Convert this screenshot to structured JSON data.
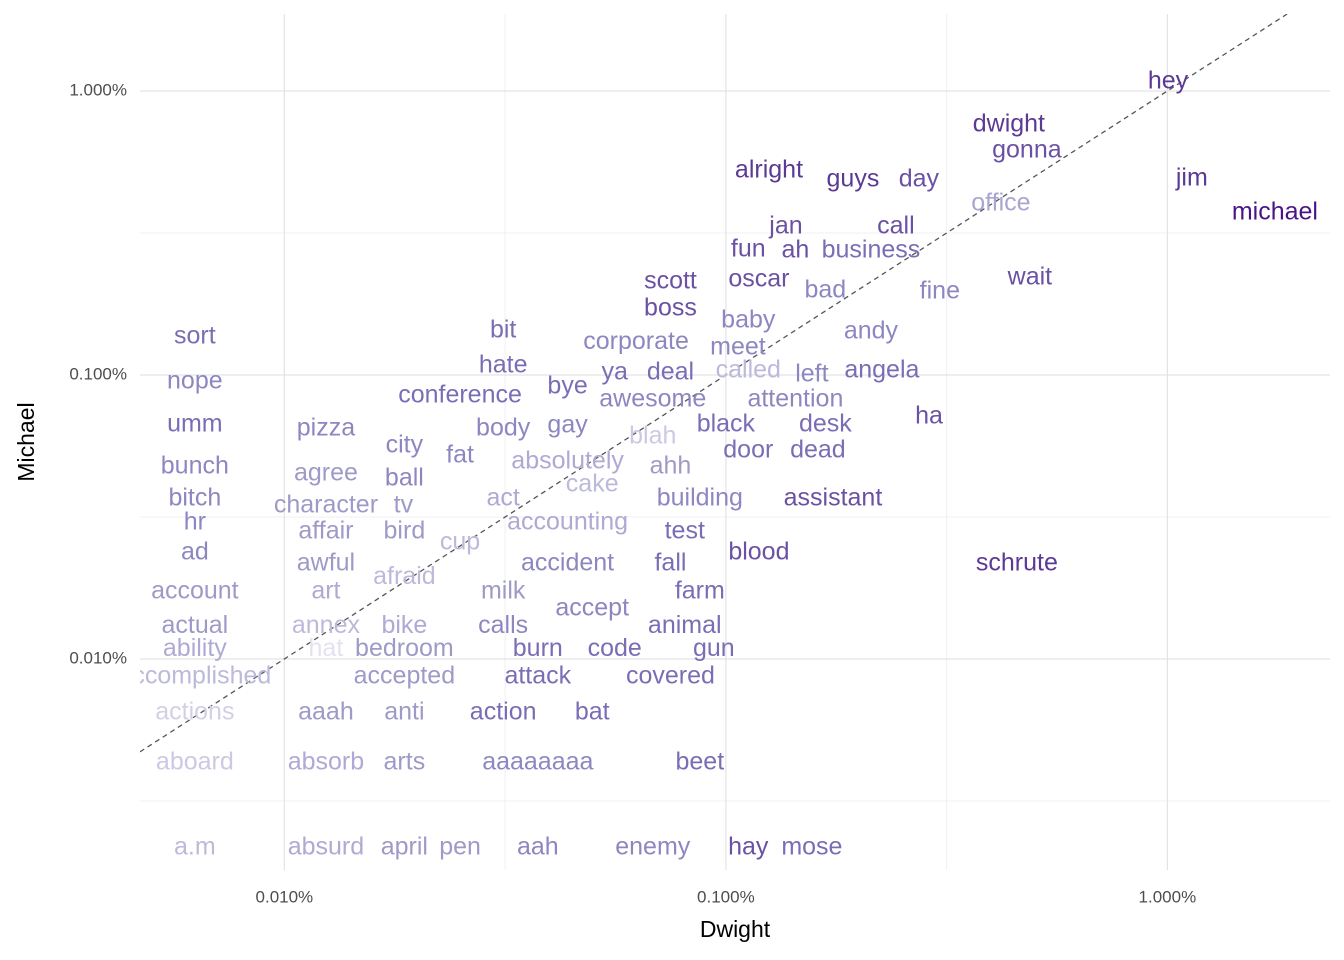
{
  "chart_data": {
    "type": "scatter",
    "xlabel": "Dwight",
    "ylabel": "Michael",
    "log_x": true,
    "log_y": true,
    "grid": true,
    "diagonal_line": true,
    "xlim": [
      0.00471,
      2.335
    ],
    "ylim": [
      0.001807,
      1.867
    ],
    "xticks": [
      {
        "value": 0.01,
        "label": "0.010%"
      },
      {
        "value": 0.1,
        "label": "0.100%"
      },
      {
        "value": 1,
        "label": "1.000%"
      }
    ],
    "yticks": [
      {
        "value": 0.01,
        "label": "0.010%"
      },
      {
        "value": 0.1,
        "label": "0.100%"
      },
      {
        "value": 1,
        "label": "1.000%"
      }
    ],
    "labels": [
      "hey",
      "dwight",
      "gonna",
      "alright",
      "guys",
      "day",
      "jim",
      "michael",
      "office",
      "jan",
      "call",
      "fun",
      "ah",
      "business",
      "scott",
      "oscar",
      "wait",
      "bad",
      "fine",
      "boss",
      "baby",
      "sort",
      "bit",
      "andy",
      "corporate",
      "meet",
      "hate",
      "ya",
      "deal",
      "called",
      "left",
      "angela",
      "nope",
      "bye",
      "conference",
      "awesome",
      "attention",
      "ha",
      "umm",
      "pizza",
      "body",
      "gay",
      "black",
      "desk",
      "blah",
      "city",
      "fat",
      "door",
      "dead",
      "bunch",
      "agree",
      "absolutely",
      "ahh",
      "ball",
      "cake",
      "bitch",
      "act",
      "building",
      "assistant",
      "character",
      "tv",
      "hr",
      "accounting",
      "affair",
      "bird",
      "test",
      "cup",
      "ad",
      "blood",
      "awful",
      "accident",
      "fall",
      "schrute",
      "afraid",
      "account",
      "art",
      "milk",
      "farm",
      "accept",
      "actual",
      "annex",
      "bike",
      "calls",
      "animal",
      "ability",
      "hat",
      "bedroom",
      "burn",
      "code",
      "gun",
      "accomplished",
      "accepted",
      "attack",
      "covered",
      "actions",
      "aaah",
      "anti",
      "action",
      "bat",
      "aboard",
      "absorb",
      "arts",
      "aaaaaaaa",
      "beet",
      "a.m",
      "absurd",
      "april",
      "pen",
      "aah",
      "enemy",
      "hay",
      "mose"
    ],
    "x": [
      1.003,
      0.4375,
      0.4806,
      0.1252,
      0.194,
      0.2736,
      1.136,
      1.752,
      0.4197,
      0.1368,
      0.2427,
      0.1124,
      0.1437,
      0.2131,
      0.0749,
      0.1188,
      0.4882,
      0.168,
      0.3052,
      0.0749,
      0.1124,
      0.00627,
      0.0313,
      0.2131,
      0.0626,
      0.1065,
      0.0313,
      0.056,
      0.0749,
      0.1124,
      0.1566,
      0.2256,
      0.00627,
      0.0438,
      0.025,
      0.0683,
      0.1437,
      0.2884,
      0.00627,
      0.01242,
      0.0313,
      0.0438,
      0.1,
      0.168,
      0.0683,
      0.0187,
      0.025,
      0.1124,
      0.1616,
      0.00627,
      0.01242,
      0.0438,
      0.0749,
      0.0187,
      0.0498,
      0.00627,
      0.0313,
      0.0873,
      0.1748,
      0.01242,
      0.0186,
      0.00627,
      0.0438,
      0.01242,
      0.0187,
      0.0807,
      0.025,
      0.00627,
      0.1188,
      0.01242,
      0.0438,
      0.0749,
      0.4561,
      0.0187,
      0.00627,
      0.01242,
      0.0313,
      0.0873,
      0.0498,
      0.00627,
      0.01242,
      0.0187,
      0.0313,
      0.0807,
      0.00627,
      0.01242,
      0.0187,
      0.0375,
      0.056,
      0.0939,
      0.00627,
      0.0187,
      0.0375,
      0.0749,
      0.00627,
      0.01242,
      0.0187,
      0.0313,
      0.0498,
      0.00627,
      0.01242,
      0.0187,
      0.0375,
      0.0873,
      0.00627,
      0.01242,
      0.0187,
      0.025,
      0.0375,
      0.0683,
      0.1124,
      0.1566
    ],
    "values": [
      1.076,
      0.759,
      0.615,
      0.523,
      0.486,
      0.486,
      0.49,
      0.372,
      0.4,
      0.332,
      0.332,
      0.276,
      0.273,
      0.273,
      0.2125,
      0.216,
      0.2195,
      0.198,
      0.196,
      0.171,
      0.155,
      0.136,
      0.143,
      0.142,
      0.13,
      0.1245,
      0.1076,
      0.1016,
      0.1016,
      0.1033,
      0.1,
      0.1033,
      0.0945,
      0.0907,
      0.0843,
      0.0817,
      0.0817,
      0.0711,
      0.0667,
      0.0646,
      0.0646,
      0.0661,
      0.0667,
      0.0667,
      0.0605,
      0.0562,
      0.0519,
      0.054,
      0.054,
      0.0474,
      0.0448,
      0.0494,
      0.0474,
      0.043,
      0.041,
      0.0366,
      0.0366,
      0.0366,
      0.0366,
      0.0346,
      0.0346,
      0.0301,
      0.0301,
      0.028,
      0.028,
      0.028,
      0.0256,
      0.0236,
      0.0236,
      0.0216,
      0.0216,
      0.0216,
      0.0216,
      0.0194,
      0.0172,
      0.0172,
      0.0172,
      0.0172,
      0.015,
      0.013,
      0.013,
      0.013,
      0.013,
      0.013,
      0.0108,
      0.0108,
      0.0108,
      0.0108,
      0.0108,
      0.0108,
      0.00864,
      0.00864,
      0.00864,
      0.00864,
      0.00646,
      0.00646,
      0.00646,
      0.00646,
      0.00646,
      0.0043,
      0.0043,
      0.0043,
      0.0043,
      0.0043,
      0.00216,
      0.00216,
      0.00216,
      0.00216,
      0.00216,
      0.00216,
      0.00216,
      0.00216
    ],
    "colors": [
      "#5b3a95",
      "#5b3a95",
      "#6a51a3",
      "#5b3a95",
      "#5b3a95",
      "#6a51a3",
      "#5b3a95",
      "#4a1486",
      "#a9a5d1",
      "#6a51a3",
      "#6a51a3",
      "#6a51a3",
      "#6a51a3",
      "#7b6db5",
      "#6a51a3",
      "#6a51a3",
      "#6a51a3",
      "#8d87c1",
      "#8d87c1",
      "#6a51a3",
      "#8d87c1",
      "#7b6db5",
      "#7b6db5",
      "#8d87c1",
      "#8d87c1",
      "#8d87c1",
      "#7b6db5",
      "#7b6db5",
      "#7b6db5",
      "#bcbadb",
      "#8d87c1",
      "#7b6db5",
      "#8d87c1",
      "#7b6db5",
      "#7b6db5",
      "#8d87c1",
      "#8d87c1",
      "#6a51a3",
      "#7b6db5",
      "#8d87c1",
      "#8d87c1",
      "#8d87c1",
      "#7b6db5",
      "#7b6db5",
      "#cbc9e3",
      "#8d87c1",
      "#8d87c1",
      "#7b6db5",
      "#7b6db5",
      "#8d87c1",
      "#9e9ac8",
      "#aeaad4",
      "#9e9ac8",
      "#8d87c1",
      "#bcbadb",
      "#8d87c1",
      "#aeaad4",
      "#8d87c1",
      "#6a51a3",
      "#9e9ac8",
      "#9e9ac8",
      "#8d87c1",
      "#aeaad4",
      "#9e9ac8",
      "#9e9ac8",
      "#7b6db5",
      "#bcbadb",
      "#8d87c1",
      "#6a51a3",
      "#9e9ac8",
      "#8d87c1",
      "#7b6db5",
      "#5b3a95",
      "#bcbadb",
      "#9e9ac8",
      "#aeaad4",
      "#9e9ac8",
      "#7b6db5",
      "#8d87c1",
      "#9e9ac8",
      "#bcbadb",
      "#aeaad4",
      "#8d87c1",
      "#7b6db5",
      "#aeaad4",
      "#e3e2f0",
      "#9e9ac8",
      "#7b6db5",
      "#7b6db5",
      "#7b6db5",
      "#bcbadb",
      "#9e9ac8",
      "#7b6db5",
      "#7b6db5",
      "#d2d0e7",
      "#9e9ac8",
      "#9e9ac8",
      "#7b6db5",
      "#7b6db5",
      "#cbc9e3",
      "#aeaad4",
      "#9e9ac8",
      "#8d87c1",
      "#7b6db5",
      "#bcbadb",
      "#aeaad4",
      "#9e9ac8",
      "#9e9ac8",
      "#8d87c1",
      "#8d87c1",
      "#6a51a3",
      "#7b6db5"
    ]
  }
}
